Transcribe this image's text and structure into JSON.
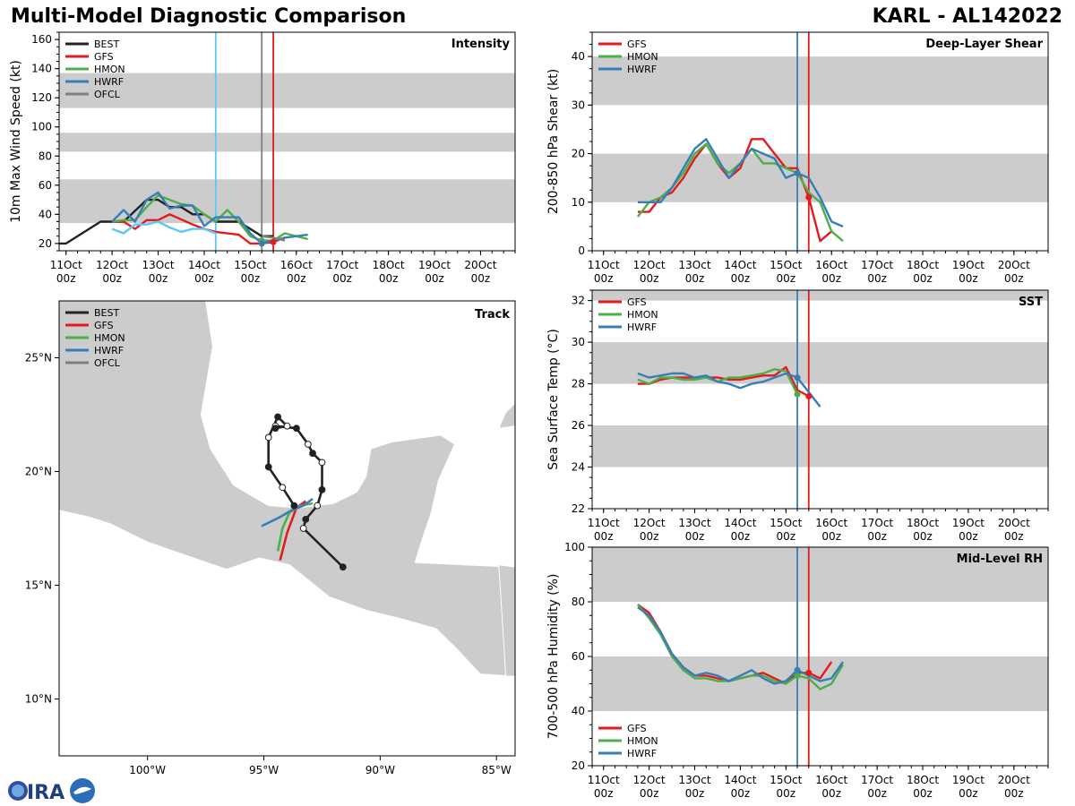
{
  "header": {
    "title": "Multi-Model Diagnostic Comparison",
    "storm": "KARL - AL142022"
  },
  "colors": {
    "BEST": "#222222",
    "GFS": "#e41a1c",
    "HMON": "#4daf4a",
    "HWRF": "#377eb8",
    "OFCL": "#7f7f7f",
    "BESTlight": "#5bc8f5",
    "band": "#cccccc"
  },
  "time_ticks": [
    "11Oct",
    "12Oct",
    "13Oct",
    "14Oct",
    "15Oct",
    "16Oct",
    "17Oct",
    "18Oct",
    "19Oct",
    "20Oct"
  ],
  "time_ticks_sub": "00z",
  "vlines": {
    "cyan": 3.25,
    "hwrf": 4.25,
    "gray": 4.25,
    "gfs": 4.5
  },
  "chart_data": [
    {
      "id": "intensity",
      "type": "line",
      "title": "Intensity",
      "ylabel": "10m Max Wind Speed (kt)",
      "xlim": [
        -0.15,
        9.75
      ],
      "ylim": [
        15,
        165
      ],
      "yticks": [
        20,
        40,
        60,
        80,
        100,
        120,
        140,
        160
      ],
      "bands": [
        [
          34,
          64
        ],
        [
          83,
          96
        ],
        [
          113,
          137
        ]
      ],
      "vlines": [
        {
          "x": 3.25,
          "color": "#5bc8f5"
        },
        {
          "x": 4.25,
          "color": "#7f7f7f"
        },
        {
          "x": 4.5,
          "color": "#e41a1c"
        }
      ],
      "legend": [
        "BEST",
        "GFS",
        "HMON",
        "HWRF",
        "OFCL"
      ],
      "series": [
        {
          "name": "BEST",
          "x": [
            -0.15,
            0,
            0.75,
            1.0,
            1.25,
            1.75,
            2.0,
            2.25,
            2.5,
            2.75,
            3.0,
            3.25,
            3.75,
            4.0,
            4.25,
            4.5
          ],
          "y": [
            20,
            20,
            35,
            35,
            35,
            50,
            50,
            45,
            45,
            40,
            40,
            35,
            35,
            30,
            25,
            25
          ]
        },
        {
          "name": "GFS",
          "x": [
            1.0,
            1.25,
            1.5,
            1.75,
            2.0,
            2.25,
            2.75,
            3.0,
            3.25,
            3.75,
            4.0,
            4.25,
            4.5,
            4.75
          ],
          "y": [
            35,
            35,
            30,
            36,
            36,
            40,
            33,
            30,
            28,
            26,
            20,
            20,
            21,
            24
          ]
        },
        {
          "name": "HMON",
          "x": [
            1.0,
            1.25,
            1.5,
            1.75,
            2.0,
            2.25,
            2.5,
            2.75,
            3.0,
            3.25,
            3.5,
            3.75,
            4.0,
            4.25,
            4.5,
            4.75,
            5.25
          ],
          "y": [
            35,
            36,
            36,
            45,
            53,
            50,
            47,
            46,
            40,
            35,
            43,
            35,
            25,
            22,
            22,
            27,
            23
          ]
        },
        {
          "name": "HWRF",
          "x": [
            1.0,
            1.25,
            1.5,
            1.75,
            2.0,
            2.25,
            2.5,
            2.75,
            3.0,
            3.25,
            3.5,
            3.75,
            4.0,
            4.25,
            4.5,
            4.75,
            5.25
          ],
          "y": [
            35,
            43,
            35,
            50,
            55,
            44,
            46,
            46,
            32,
            38,
            38,
            38,
            27,
            20,
            22,
            24,
            26
          ]
        },
        {
          "name": "OFCL",
          "x": [
            4.25,
            4.5,
            4.75
          ],
          "y": [
            25,
            24,
            22
          ]
        },
        {
          "name": "BESTlight",
          "x": [
            1.0,
            1.25,
            1.5,
            1.75,
            2.0,
            2.25,
            2.5,
            2.75,
            3.0,
            3.25
          ],
          "y": [
            30,
            27,
            33,
            33,
            35,
            31,
            28,
            30,
            30,
            27
          ]
        }
      ]
    },
    {
      "id": "shear",
      "type": "line",
      "title": "Deep-Layer Shear",
      "ylabel": "200-850 hPa Shear (kt)",
      "xlim": [
        -0.25,
        9.75
      ],
      "ylim": [
        0,
        45
      ],
      "yticks": [
        0,
        10,
        20,
        30,
        40
      ],
      "bands": [
        [
          10,
          20
        ],
        [
          30,
          40
        ]
      ],
      "vlines": [
        {
          "x": 4.25,
          "color": "#377eb8"
        },
        {
          "x": 4.5,
          "color": "#e41a1c"
        }
      ],
      "legend": [
        "GFS",
        "HMON",
        "HWRF"
      ],
      "series": [
        {
          "name": "GFS",
          "x": [
            0.75,
            1.0,
            1.25,
            1.5,
            1.75,
            2.0,
            2.25,
            2.5,
            2.75,
            3.0,
            3.25,
            3.5,
            3.75,
            4.0,
            4.25,
            4.5,
            4.75,
            5.0
          ],
          "y": [
            8,
            8,
            11,
            12,
            15,
            19,
            22,
            18,
            15,
            17,
            23,
            23,
            20,
            17,
            17,
            11,
            2,
            4
          ]
        },
        {
          "name": "HMON",
          "x": [
            0.75,
            1.0,
            1.25,
            1.5,
            1.75,
            2.0,
            2.25,
            2.5,
            2.75,
            3.0,
            3.25,
            3.5,
            3.75,
            4.0,
            4.25,
            4.5,
            4.75,
            5.0,
            5.25
          ],
          "y": [
            7,
            10,
            11,
            13,
            16,
            20,
            22,
            18,
            16,
            18,
            21,
            18,
            18,
            17,
            16,
            12,
            10,
            4,
            2
          ]
        },
        {
          "name": "HWRF",
          "x": [
            0.75,
            1.0,
            1.25,
            1.5,
            1.75,
            2.0,
            2.25,
            2.5,
            2.75,
            3.0,
            3.25,
            3.5,
            3.75,
            4.0,
            4.25,
            4.5,
            4.75,
            5.0,
            5.25
          ],
          "y": [
            10,
            10,
            10,
            13,
            17,
            21,
            23,
            19,
            15,
            18,
            21,
            20,
            19,
            15,
            16,
            15,
            11,
            6,
            5
          ]
        }
      ]
    },
    {
      "id": "sst",
      "type": "line",
      "title": "SST",
      "ylabel": "Sea Surface Temp (°C)",
      "xlim": [
        -0.25,
        9.75
      ],
      "ylim": [
        22,
        32.5
      ],
      "yticks": [
        22,
        24,
        26,
        28,
        30,
        32
      ],
      "bands": [
        [
          24,
          26
        ],
        [
          28,
          30
        ],
        [
          32,
          32.5
        ]
      ],
      "vlines": [
        {
          "x": 4.25,
          "color": "#377eb8"
        },
        {
          "x": 4.5,
          "color": "#e41a1c"
        }
      ],
      "legend": [
        "GFS",
        "HMON",
        "HWRF"
      ],
      "series": [
        {
          "name": "GFS",
          "x": [
            0.75,
            1.0,
            1.25,
            1.5,
            1.75,
            2.0,
            2.25,
            2.5,
            2.75,
            3.0,
            3.25,
            3.5,
            3.75,
            4.0,
            4.25,
            4.5
          ],
          "y": [
            28.0,
            28.0,
            28.2,
            28.3,
            28.3,
            28.3,
            28.3,
            28.3,
            28.2,
            28.2,
            28.3,
            28.4,
            28.4,
            28.8,
            27.7,
            27.4
          ]
        },
        {
          "name": "HMON",
          "x": [
            0.75,
            1.0,
            1.25,
            1.5,
            1.75,
            2.0,
            2.25,
            2.5,
            2.75,
            3.0,
            3.25,
            3.5,
            3.75,
            4.0,
            4.25
          ],
          "y": [
            28.2,
            28.0,
            28.3,
            28.3,
            28.2,
            28.2,
            28.3,
            28.1,
            28.3,
            28.3,
            28.4,
            28.5,
            28.7,
            28.6,
            27.5
          ]
        },
        {
          "name": "HWRF",
          "x": [
            0.75,
            1.0,
            1.25,
            1.5,
            1.75,
            2.0,
            2.25,
            2.5,
            2.75,
            3.0,
            3.25,
            3.5,
            3.75,
            4.0,
            4.25,
            4.5,
            4.75
          ],
          "y": [
            28.5,
            28.3,
            28.4,
            28.5,
            28.5,
            28.3,
            28.4,
            28.1,
            28.0,
            27.8,
            28.0,
            28.1,
            28.3,
            28.5,
            28.3,
            27.6,
            26.9
          ]
        }
      ]
    },
    {
      "id": "rh",
      "type": "line",
      "title": "Mid-Level RH",
      "ylabel": "700-500 hPa Humidity (%)",
      "xlim": [
        -0.25,
        9.75
      ],
      "ylim": [
        20,
        100
      ],
      "yticks": [
        20,
        40,
        60,
        80,
        100
      ],
      "bands": [
        [
          40,
          60
        ],
        [
          80,
          100
        ]
      ],
      "vlines": [
        {
          "x": 4.25,
          "color": "#377eb8"
        },
        {
          "x": 4.5,
          "color": "#e41a1c"
        }
      ],
      "legend": [
        "GFS",
        "HMON",
        "HWRF"
      ],
      "series": [
        {
          "name": "GFS",
          "x": [
            0.75,
            1.0,
            1.25,
            1.5,
            1.75,
            2.0,
            2.25,
            2.5,
            2.75,
            3.0,
            3.25,
            3.5,
            3.75,
            4.0,
            4.25,
            4.5,
            4.75,
            5.0
          ],
          "y": [
            79,
            76,
            69,
            61,
            56,
            53,
            53,
            52,
            51,
            52,
            53,
            54,
            52,
            50,
            54,
            54,
            52,
            58
          ]
        },
        {
          "name": "HMON",
          "x": [
            0.75,
            1.0,
            1.25,
            1.5,
            1.75,
            2.0,
            2.25,
            2.5,
            2.75,
            3.0,
            3.25,
            3.5,
            3.75,
            4.0,
            4.25,
            4.5,
            4.75,
            5.0,
            5.25
          ],
          "y": [
            79,
            74,
            68,
            60,
            55,
            52,
            52,
            51,
            51,
            52,
            53,
            53,
            51,
            50,
            53,
            52,
            48,
            50,
            57
          ]
        },
        {
          "name": "HWRF",
          "x": [
            0.75,
            1.0,
            1.25,
            1.5,
            1.75,
            2.0,
            2.25,
            2.5,
            2.75,
            3.0,
            3.25,
            3.5,
            3.75,
            4.0,
            4.25,
            4.5,
            4.75,
            5.0,
            5.25
          ],
          "y": [
            78,
            75,
            69,
            61,
            56,
            53,
            54,
            53,
            51,
            53,
            55,
            52,
            50,
            51,
            55,
            53,
            51,
            52,
            58
          ]
        }
      ]
    },
    {
      "id": "track",
      "type": "map",
      "title": "Track",
      "lon_range": [
        -103.8,
        -84.2
      ],
      "lat_range": [
        7.5,
        27.5
      ],
      "lon_ticks": [
        -100,
        -95,
        -90,
        -85
      ],
      "lon_labels": [
        "100°W",
        "95°W",
        "90°W",
        "85°W"
      ],
      "lat_ticks": [
        10,
        15,
        20,
        25
      ],
      "lat_labels": [
        "10°N",
        "15°N",
        "20°N",
        "25°N"
      ],
      "legend": [
        "BEST",
        "GFS",
        "HMON",
        "HWRF",
        "OFCL"
      ],
      "tracks": [
        {
          "name": "BEST",
          "lon": [
            -91.6,
            -93.3,
            -93.2,
            -92.7,
            -92.5,
            -92.5,
            -92.9,
            -93.1,
            -93.6,
            -94.5,
            -94.5,
            -94.0,
            -94.4,
            -94.8,
            -94.8,
            -94.2,
            -93.7
          ],
          "lat": [
            15.8,
            17.5,
            17.9,
            18.5,
            19.2,
            20.4,
            20.8,
            21.2,
            21.9,
            22.0,
            21.9,
            22.0,
            22.4,
            21.5,
            20.2,
            19.3,
            18.5
          ]
        },
        {
          "name": "GFS",
          "lon": [
            -94.3,
            -94.0,
            -93.6,
            -93.2
          ],
          "lat": [
            16.1,
            17.3,
            18.4,
            18.7
          ]
        },
        {
          "name": "HMON",
          "lon": [
            -94.4,
            -94.2,
            -93.9,
            -93.4,
            -92.9
          ],
          "lat": [
            16.5,
            17.5,
            18.2,
            18.5,
            18.6
          ]
        },
        {
          "name": "HWRF",
          "lon": [
            -95.1,
            -94.3,
            -93.8,
            -93.3,
            -92.9
          ],
          "lat": [
            17.6,
            18.0,
            18.3,
            18.5,
            18.8
          ]
        }
      ]
    }
  ]
}
